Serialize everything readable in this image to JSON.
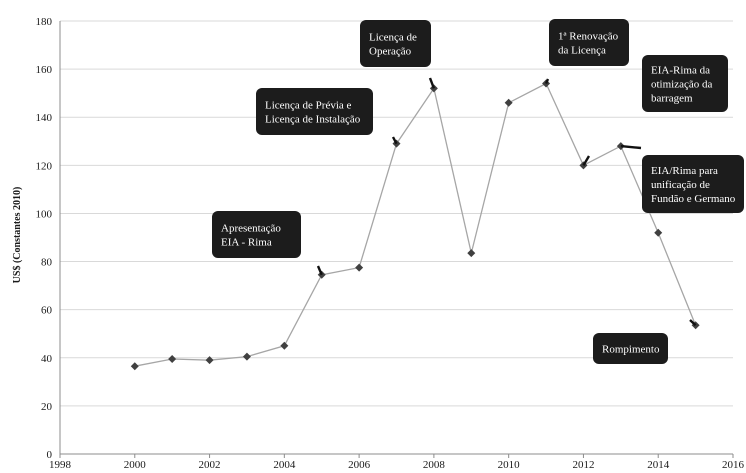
{
  "chart_data": {
    "type": "line",
    "title": "",
    "xlabel": "",
    "ylabel": "US$ (Constantes 2010)",
    "xlim": [
      1998,
      2016
    ],
    "ylim": [
      0,
      180
    ],
    "x_ticks": [
      1998,
      2000,
      2002,
      2004,
      2006,
      2008,
      2010,
      2012,
      2014,
      2016
    ],
    "y_ticks": [
      0,
      20,
      40,
      60,
      80,
      100,
      120,
      140,
      160,
      180
    ],
    "grid": "horizontal",
    "legend": "none",
    "series": [
      {
        "x": [
          2000,
          2001,
          2002,
          2003,
          2004,
          2005,
          2006,
          2007,
          2008,
          2009,
          2010,
          2011,
          2012,
          2013,
          2014,
          2015
        ],
        "y": [
          36.5,
          39.5,
          39,
          40.5,
          45,
          74.5,
          77.5,
          129,
          152,
          83.5,
          146,
          154,
          120,
          128,
          92,
          53.5
        ],
        "line_color": "#a6a6a6",
        "marker": "diamond",
        "marker_color": "#404040"
      }
    ],
    "annotations": [
      {
        "lines": [
          "Apresentação",
          "EIA - Rima"
        ],
        "point": [
          2005,
          74.5
        ]
      },
      {
        "lines": [
          "Licença de Prévia e",
          "Licença de Instalação"
        ],
        "point": [
          2007,
          129
        ]
      },
      {
        "lines": [
          "Licença de",
          "Operação"
        ],
        "point": [
          2008,
          152
        ]
      },
      {
        "lines": [
          "1ª Renovação",
          "da Licença"
        ],
        "point": [
          2011,
          154
        ]
      },
      {
        "lines": [
          "EIA-Rima da",
          "otimização da",
          "barragem"
        ],
        "point": [
          2012,
          120
        ]
      },
      {
        "lines": [
          "EIA/Rima para",
          "unificação  de",
          "Fundão e Germano"
        ],
        "point": [
          2013,
          128
        ]
      },
      {
        "lines": [
          "Rompimento"
        ],
        "point": [
          2015,
          53.5
        ]
      }
    ]
  }
}
